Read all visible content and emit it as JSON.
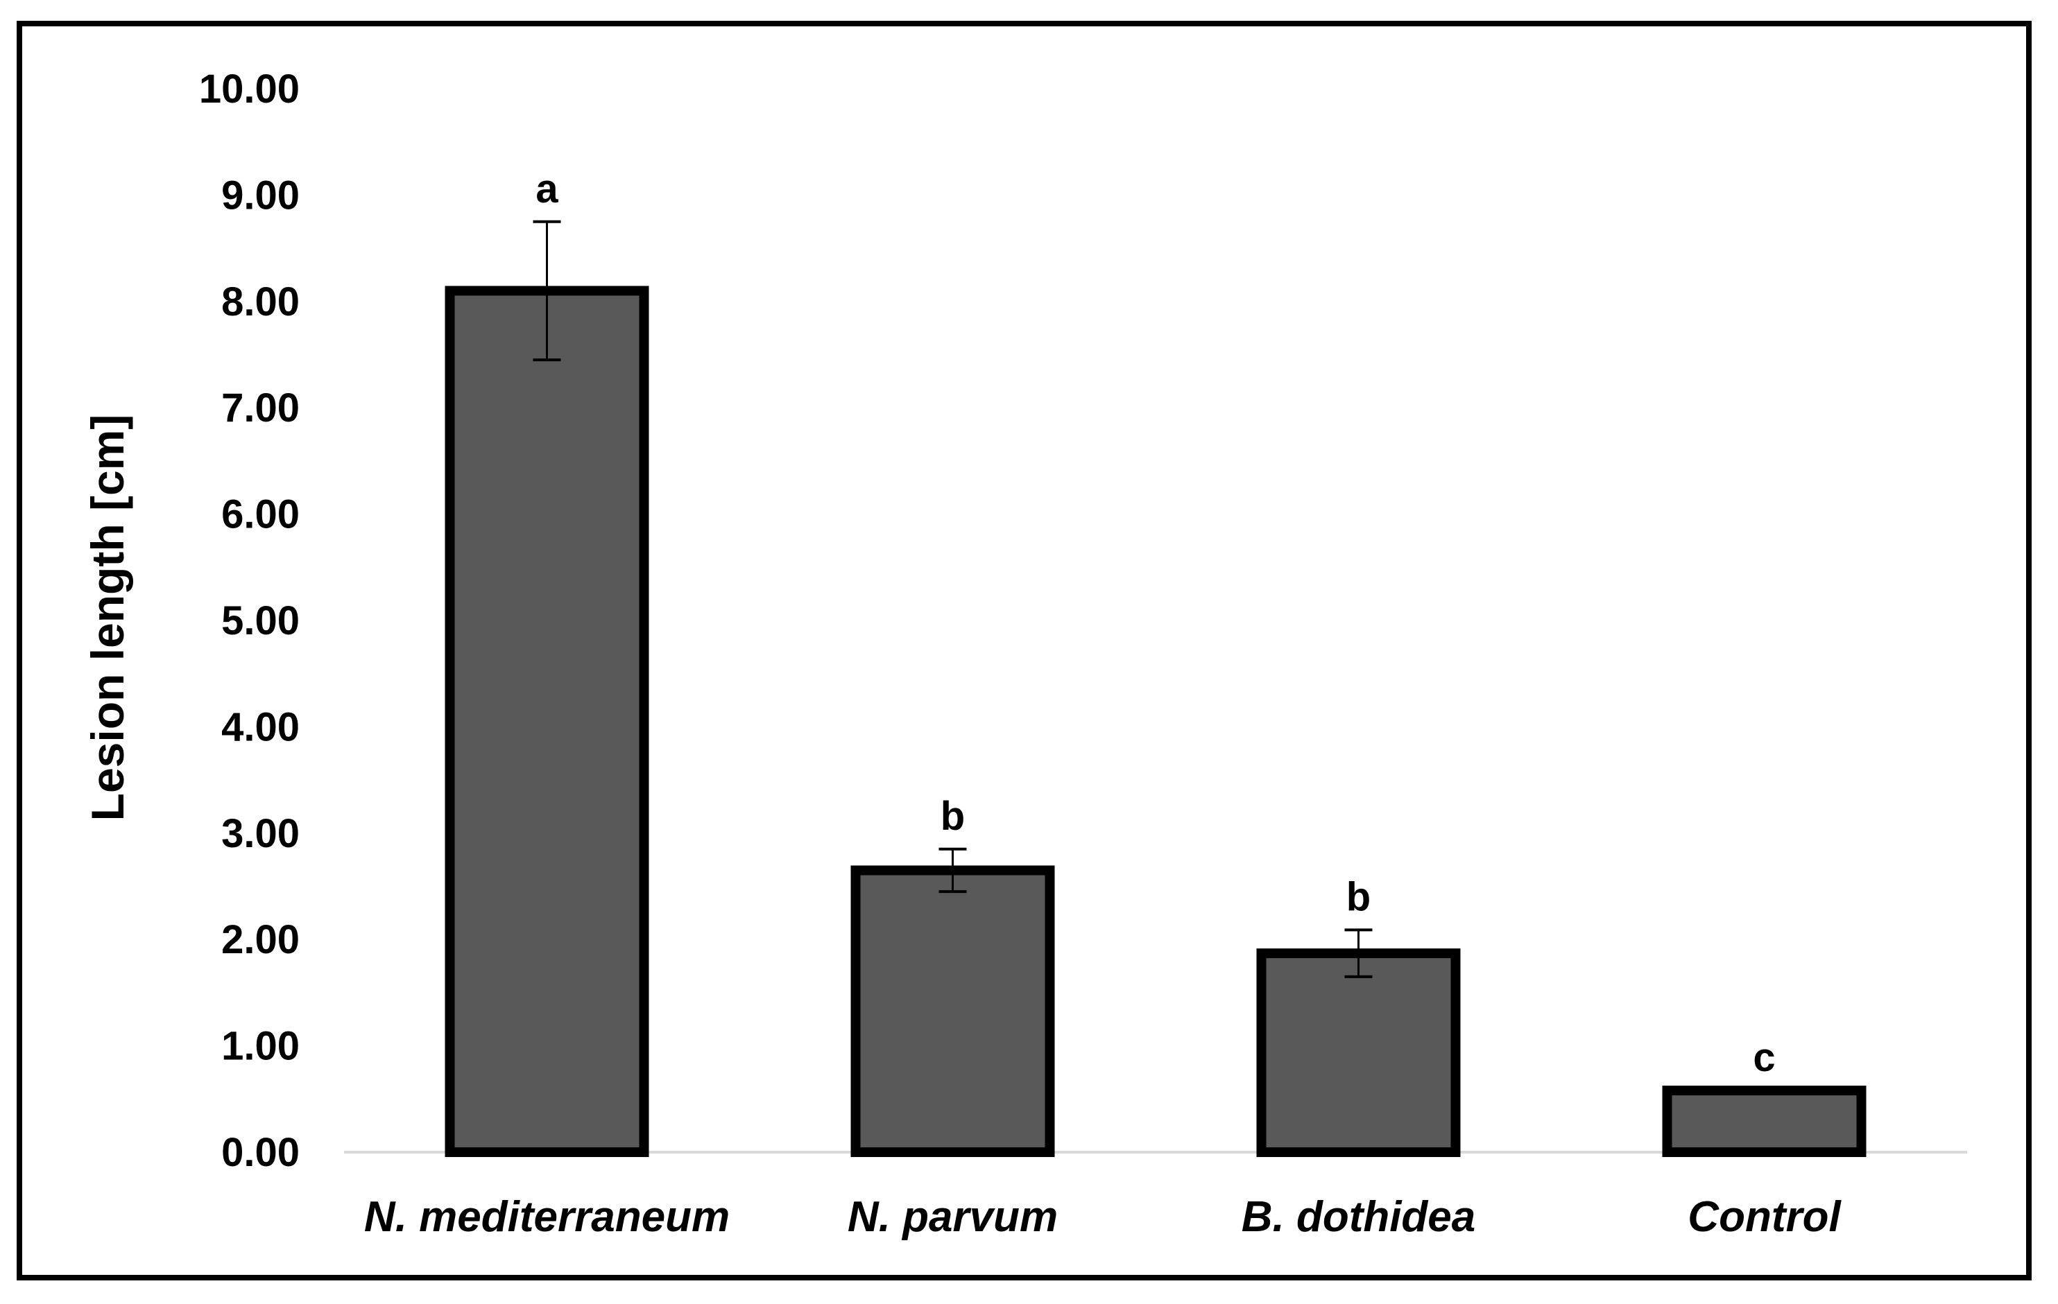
{
  "chart_data": {
    "type": "bar",
    "title": "",
    "xlabel": "",
    "ylabel": "Lesion length [cm]",
    "ylim": [
      0,
      10
    ],
    "yticks": [
      "0.00",
      "1.00",
      "2.00",
      "3.00",
      "4.00",
      "5.00",
      "6.00",
      "7.00",
      "8.00",
      "9.00",
      "10.00"
    ],
    "categories": [
      "N. mediterraneum",
      "N. parvum",
      "B. dothidea",
      "Control"
    ],
    "values": [
      8.1,
      2.65,
      1.87,
      0.58
    ],
    "error": [
      0.65,
      0.2,
      0.22,
      0
    ],
    "significance": [
      "a",
      "b",
      "b",
      "c"
    ],
    "grid": false,
    "legend": "none",
    "colors": {
      "bar_fill": "#595959",
      "bar_border": "#000000",
      "baseline": "#d9d9d9",
      "frame": "#000000"
    }
  }
}
